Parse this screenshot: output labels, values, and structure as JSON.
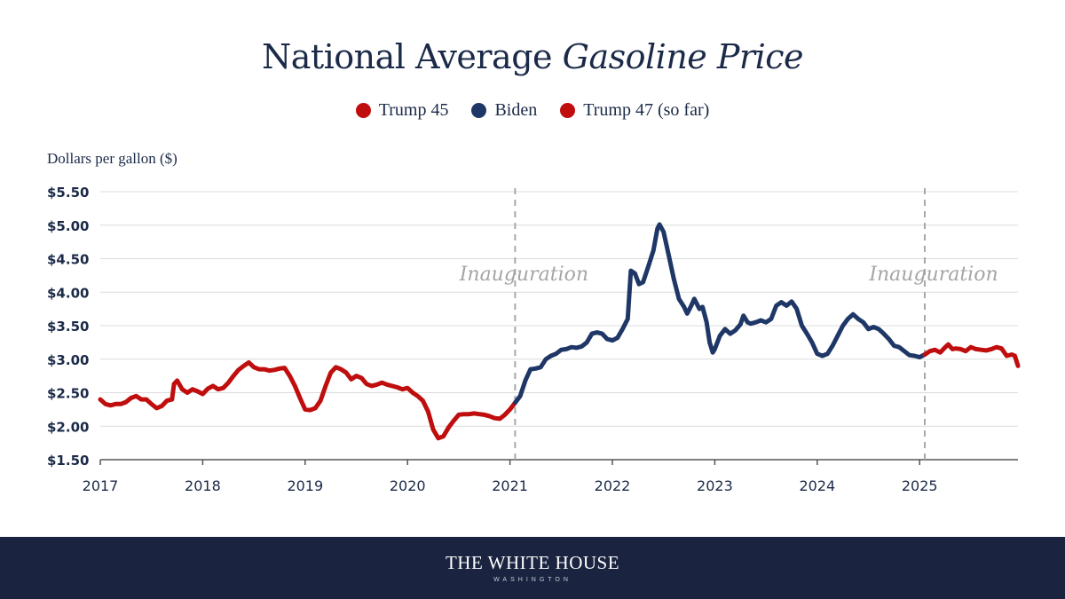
{
  "chart_data": {
    "type": "line",
    "title_main": "National Average",
    "title_italic": "Gasoline Price",
    "ylabel": "Dollars per gallon ($)",
    "xlabel": "",
    "ylim": [
      1.5,
      5.5
    ],
    "xlim": [
      2017.0,
      2025.96
    ],
    "y_ticks": [
      1.5,
      2.0,
      2.5,
      3.0,
      3.5,
      4.0,
      4.5,
      5.0,
      5.5
    ],
    "y_tick_labels": [
      "$1.50",
      "$2.00",
      "$2.50",
      "$3.00",
      "$3.50",
      "$4.00",
      "$4.50",
      "$5.00",
      "$5.50"
    ],
    "x_ticks": [
      2017,
      2018,
      2019,
      2020,
      2021,
      2022,
      2023,
      2024,
      2025
    ],
    "x_tick_labels": [
      "2017",
      "2018",
      "2019",
      "2020",
      "2021",
      "2022",
      "2023",
      "2024",
      "2025"
    ],
    "grid": true,
    "legend_position": "top-center",
    "annotations": [
      {
        "text": "Inauguration",
        "x": 2021.05
      },
      {
        "text": "Inauguration",
        "x": 2025.05
      }
    ],
    "series": [
      {
        "name": "Trump 45",
        "color": "#c00d0d",
        "points": [
          [
            2017.0,
            2.4
          ],
          [
            2017.05,
            2.33
          ],
          [
            2017.1,
            2.31
          ],
          [
            2017.15,
            2.33
          ],
          [
            2017.2,
            2.33
          ],
          [
            2017.25,
            2.36
          ],
          [
            2017.3,
            2.42
          ],
          [
            2017.35,
            2.45
          ],
          [
            2017.4,
            2.4
          ],
          [
            2017.45,
            2.4
          ],
          [
            2017.5,
            2.33
          ],
          [
            2017.55,
            2.27
          ],
          [
            2017.6,
            2.3
          ],
          [
            2017.65,
            2.38
          ],
          [
            2017.7,
            2.4
          ],
          [
            2017.72,
            2.63
          ],
          [
            2017.75,
            2.68
          ],
          [
            2017.8,
            2.55
          ],
          [
            2017.85,
            2.5
          ],
          [
            2017.9,
            2.55
          ],
          [
            2017.95,
            2.52
          ],
          [
            2018.0,
            2.48
          ],
          [
            2018.05,
            2.56
          ],
          [
            2018.1,
            2.6
          ],
          [
            2018.15,
            2.55
          ],
          [
            2018.2,
            2.57
          ],
          [
            2018.25,
            2.65
          ],
          [
            2018.3,
            2.75
          ],
          [
            2018.35,
            2.84
          ],
          [
            2018.4,
            2.9
          ],
          [
            2018.45,
            2.95
          ],
          [
            2018.5,
            2.88
          ],
          [
            2018.55,
            2.85
          ],
          [
            2018.6,
            2.85
          ],
          [
            2018.65,
            2.83
          ],
          [
            2018.7,
            2.84
          ],
          [
            2018.75,
            2.86
          ],
          [
            2018.8,
            2.87
          ],
          [
            2018.85,
            2.75
          ],
          [
            2018.9,
            2.6
          ],
          [
            2018.95,
            2.42
          ],
          [
            2019.0,
            2.25
          ],
          [
            2019.05,
            2.24
          ],
          [
            2019.1,
            2.27
          ],
          [
            2019.15,
            2.38
          ],
          [
            2019.2,
            2.6
          ],
          [
            2019.25,
            2.8
          ],
          [
            2019.3,
            2.88
          ],
          [
            2019.35,
            2.85
          ],
          [
            2019.4,
            2.8
          ],
          [
            2019.45,
            2.7
          ],
          [
            2019.5,
            2.75
          ],
          [
            2019.55,
            2.72
          ],
          [
            2019.6,
            2.63
          ],
          [
            2019.65,
            2.6
          ],
          [
            2019.7,
            2.62
          ],
          [
            2019.75,
            2.65
          ],
          [
            2019.8,
            2.62
          ],
          [
            2019.85,
            2.6
          ],
          [
            2019.9,
            2.58
          ],
          [
            2019.95,
            2.55
          ],
          [
            2020.0,
            2.57
          ],
          [
            2020.05,
            2.5
          ],
          [
            2020.1,
            2.45
          ],
          [
            2020.15,
            2.38
          ],
          [
            2020.2,
            2.22
          ],
          [
            2020.25,
            1.95
          ],
          [
            2020.3,
            1.82
          ],
          [
            2020.35,
            1.85
          ],
          [
            2020.4,
            1.98
          ],
          [
            2020.45,
            2.08
          ],
          [
            2020.5,
            2.17
          ],
          [
            2020.55,
            2.18
          ],
          [
            2020.6,
            2.18
          ],
          [
            2020.65,
            2.19
          ],
          [
            2020.7,
            2.18
          ],
          [
            2020.75,
            2.17
          ],
          [
            2020.8,
            2.15
          ],
          [
            2020.85,
            2.12
          ],
          [
            2020.9,
            2.11
          ],
          [
            2020.95,
            2.17
          ],
          [
            2021.0,
            2.25
          ],
          [
            2021.05,
            2.35
          ]
        ]
      },
      {
        "name": "Biden",
        "color": "#1f3766",
        "points": [
          [
            2021.05,
            2.35
          ],
          [
            2021.1,
            2.45
          ],
          [
            2021.15,
            2.68
          ],
          [
            2021.2,
            2.85
          ],
          [
            2021.25,
            2.86
          ],
          [
            2021.3,
            2.88
          ],
          [
            2021.35,
            3.0
          ],
          [
            2021.4,
            3.05
          ],
          [
            2021.45,
            3.08
          ],
          [
            2021.5,
            3.14
          ],
          [
            2021.55,
            3.15
          ],
          [
            2021.6,
            3.18
          ],
          [
            2021.65,
            3.17
          ],
          [
            2021.7,
            3.19
          ],
          [
            2021.75,
            3.25
          ],
          [
            2021.8,
            3.38
          ],
          [
            2021.85,
            3.4
          ],
          [
            2021.9,
            3.38
          ],
          [
            2021.95,
            3.3
          ],
          [
            2022.0,
            3.28
          ],
          [
            2022.05,
            3.32
          ],
          [
            2022.1,
            3.45
          ],
          [
            2022.15,
            3.6
          ],
          [
            2022.18,
            4.32
          ],
          [
            2022.22,
            4.28
          ],
          [
            2022.26,
            4.12
          ],
          [
            2022.3,
            4.15
          ],
          [
            2022.35,
            4.38
          ],
          [
            2022.4,
            4.62
          ],
          [
            2022.44,
            4.95
          ],
          [
            2022.46,
            5.01
          ],
          [
            2022.5,
            4.9
          ],
          [
            2022.55,
            4.55
          ],
          [
            2022.6,
            4.2
          ],
          [
            2022.65,
            3.9
          ],
          [
            2022.7,
            3.78
          ],
          [
            2022.73,
            3.68
          ],
          [
            2022.77,
            3.8
          ],
          [
            2022.8,
            3.9
          ],
          [
            2022.85,
            3.75
          ],
          [
            2022.88,
            3.78
          ],
          [
            2022.92,
            3.55
          ],
          [
            2022.95,
            3.25
          ],
          [
            2022.98,
            3.1
          ],
          [
            2023.0,
            3.15
          ],
          [
            2023.05,
            3.35
          ],
          [
            2023.1,
            3.45
          ],
          [
            2023.15,
            3.38
          ],
          [
            2023.2,
            3.43
          ],
          [
            2023.25,
            3.52
          ],
          [
            2023.28,
            3.65
          ],
          [
            2023.32,
            3.55
          ],
          [
            2023.35,
            3.53
          ],
          [
            2023.4,
            3.55
          ],
          [
            2023.45,
            3.58
          ],
          [
            2023.5,
            3.55
          ],
          [
            2023.55,
            3.6
          ],
          [
            2023.6,
            3.8
          ],
          [
            2023.65,
            3.85
          ],
          [
            2023.7,
            3.8
          ],
          [
            2023.75,
            3.86
          ],
          [
            2023.8,
            3.75
          ],
          [
            2023.85,
            3.5
          ],
          [
            2023.9,
            3.38
          ],
          [
            2023.95,
            3.25
          ],
          [
            2024.0,
            3.08
          ],
          [
            2024.05,
            3.05
          ],
          [
            2024.1,
            3.08
          ],
          [
            2024.15,
            3.2
          ],
          [
            2024.2,
            3.35
          ],
          [
            2024.25,
            3.5
          ],
          [
            2024.3,
            3.6
          ],
          [
            2024.35,
            3.67
          ],
          [
            2024.4,
            3.6
          ],
          [
            2024.45,
            3.55
          ],
          [
            2024.5,
            3.45
          ],
          [
            2024.55,
            3.48
          ],
          [
            2024.6,
            3.45
          ],
          [
            2024.65,
            3.38
          ],
          [
            2024.7,
            3.3
          ],
          [
            2024.75,
            3.2
          ],
          [
            2024.8,
            3.18
          ],
          [
            2024.85,
            3.12
          ],
          [
            2024.9,
            3.06
          ],
          [
            2024.95,
            3.05
          ],
          [
            2025.0,
            3.03
          ],
          [
            2025.05,
            3.07
          ]
        ]
      },
      {
        "name": "Trump 47 (so far)",
        "color": "#c00d0d",
        "points": [
          [
            2025.05,
            3.07
          ],
          [
            2025.1,
            3.12
          ],
          [
            2025.15,
            3.14
          ],
          [
            2025.2,
            3.1
          ],
          [
            2025.25,
            3.18
          ],
          [
            2025.28,
            3.22
          ],
          [
            2025.32,
            3.15
          ],
          [
            2025.35,
            3.16
          ],
          [
            2025.4,
            3.15
          ],
          [
            2025.45,
            3.12
          ],
          [
            2025.5,
            3.18
          ],
          [
            2025.55,
            3.15
          ],
          [
            2025.6,
            3.14
          ],
          [
            2025.65,
            3.13
          ],
          [
            2025.7,
            3.15
          ],
          [
            2025.75,
            3.18
          ],
          [
            2025.8,
            3.16
          ],
          [
            2025.85,
            3.05
          ],
          [
            2025.9,
            3.07
          ],
          [
            2025.93,
            3.05
          ],
          [
            2025.96,
            2.9
          ]
        ]
      }
    ]
  },
  "footer": {
    "name": "THE WHITE HOUSE",
    "subtitle": "WASHINGTON"
  }
}
